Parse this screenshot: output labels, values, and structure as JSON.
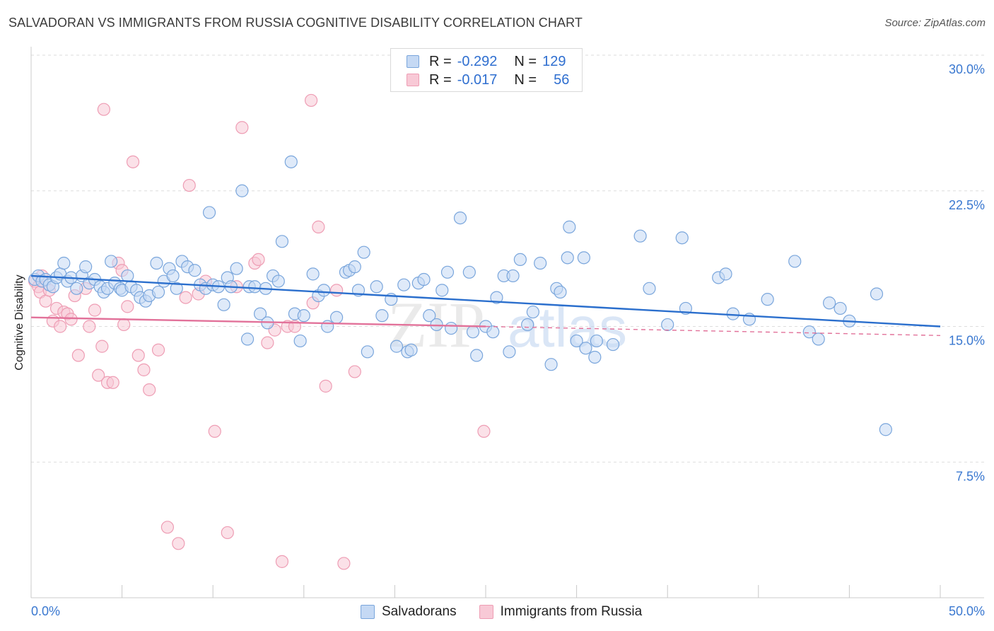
{
  "header": {
    "title": "SALVADORAN VS IMMIGRANTS FROM RUSSIA COGNITIVE DISABILITY CORRELATION CHART",
    "source": "Source: ZipAtlas.com"
  },
  "legend": {
    "rows": [
      {
        "r_label": "R =",
        "r_value": "-0.292",
        "n_label": "N =",
        "n_value": "129"
      },
      {
        "r_label": "R =",
        "r_value": "-0.017",
        "n_label": "N =",
        "n_value": "56"
      }
    ],
    "bottom": [
      "Salvadorans",
      "Immigrants from Russia"
    ]
  },
  "watermark": {
    "zip": "ZIP",
    "atlas": "atlas"
  },
  "colors": {
    "blue_fill": "#c5d9f4",
    "blue_stroke": "#7aa6dc",
    "blue_line": "#2b6fcd",
    "pink_fill": "#f8c9d6",
    "pink_stroke": "#ee9db4",
    "pink_line": "#e2729a",
    "tick_label": "#3a78d0",
    "grid": "#dddddd"
  },
  "chart_data": {
    "type": "scatter",
    "title": "SALVADORAN VS IMMIGRANTS FROM RUSSIA COGNITIVE DISABILITY CORRELATION CHART",
    "xlabel": "",
    "ylabel": "Cognitive Disability",
    "xlim": [
      0,
      50
    ],
    "ylim": [
      0,
      30
    ],
    "x_tick_labels": [
      "0.0%",
      "50.0%"
    ],
    "y_ticks": [
      {
        "value": 7.5,
        "label": "7.5%"
      },
      {
        "value": 15,
        "label": "15.0%"
      },
      {
        "value": 22.5,
        "label": "22.5%"
      },
      {
        "value": 30,
        "label": "30.0%"
      }
    ],
    "x_minor_ticks": [
      0,
      5,
      10,
      15,
      20,
      25,
      30,
      35,
      40,
      45,
      50
    ],
    "series": [
      {
        "name": "Salvadorans",
        "color": "blue",
        "r": -0.292,
        "n": 129,
        "trend": {
          "x0": 0,
          "y0": 17.8,
          "x1": 50,
          "y1": 15.0,
          "solid_to": 50
        },
        "points": [
          [
            0.2,
            17.6
          ],
          [
            0.4,
            17.8
          ],
          [
            0.6,
            17.5
          ],
          [
            0.8,
            17.6
          ],
          [
            1.0,
            17.3
          ],
          [
            1.2,
            17.2
          ],
          [
            1.4,
            17.7
          ],
          [
            1.6,
            17.9
          ],
          [
            1.8,
            18.5
          ],
          [
            2.0,
            17.5
          ],
          [
            2.2,
            17.7
          ],
          [
            2.5,
            17.1
          ],
          [
            2.8,
            17.8
          ],
          [
            3.0,
            18.3
          ],
          [
            3.2,
            17.4
          ],
          [
            3.5,
            17.6
          ],
          [
            3.8,
            17.2
          ],
          [
            4.0,
            16.9
          ],
          [
            4.2,
            17.1
          ],
          [
            4.4,
            18.6
          ],
          [
            4.6,
            17.4
          ],
          [
            4.9,
            17.1
          ],
          [
            5.0,
            17.0
          ],
          [
            5.3,
            17.8
          ],
          [
            5.5,
            17.2
          ],
          [
            5.8,
            17.0
          ],
          [
            6.0,
            16.6
          ],
          [
            6.3,
            16.4
          ],
          [
            6.5,
            16.7
          ],
          [
            6.9,
            18.5
          ],
          [
            7.0,
            16.9
          ],
          [
            7.3,
            17.5
          ],
          [
            7.6,
            18.2
          ],
          [
            7.8,
            17.8
          ],
          [
            8.0,
            17.1
          ],
          [
            8.3,
            18.6
          ],
          [
            8.6,
            18.3
          ],
          [
            9.0,
            18.1
          ],
          [
            9.3,
            17.3
          ],
          [
            9.6,
            17.1
          ],
          [
            9.8,
            21.3
          ],
          [
            10.0,
            17.3
          ],
          [
            10.3,
            17.2
          ],
          [
            10.6,
            16.2
          ],
          [
            10.8,
            17.7
          ],
          [
            11.0,
            17.2
          ],
          [
            11.3,
            18.2
          ],
          [
            11.6,
            22.5
          ],
          [
            11.9,
            14.3
          ],
          [
            12.0,
            17.2
          ],
          [
            12.3,
            17.2
          ],
          [
            12.6,
            15.7
          ],
          [
            12.9,
            17.1
          ],
          [
            13.0,
            15.2
          ],
          [
            13.3,
            17.8
          ],
          [
            13.6,
            17.5
          ],
          [
            13.8,
            19.7
          ],
          [
            14.3,
            24.1
          ],
          [
            14.5,
            15.7
          ],
          [
            14.8,
            14.2
          ],
          [
            15.0,
            15.6
          ],
          [
            15.5,
            17.9
          ],
          [
            15.8,
            16.7
          ],
          [
            16.1,
            17.0
          ],
          [
            16.3,
            15.0
          ],
          [
            16.8,
            15.5
          ],
          [
            17.3,
            18.0
          ],
          [
            17.5,
            18.1
          ],
          [
            17.8,
            18.3
          ],
          [
            18.0,
            17.0
          ],
          [
            18.3,
            19.1
          ],
          [
            18.5,
            13.6
          ],
          [
            19.0,
            17.2
          ],
          [
            19.3,
            15.6
          ],
          [
            19.8,
            16.5
          ],
          [
            20.1,
            13.9
          ],
          [
            20.5,
            17.3
          ],
          [
            20.7,
            13.6
          ],
          [
            20.9,
            13.7
          ],
          [
            21.3,
            17.4
          ],
          [
            21.6,
            17.6
          ],
          [
            21.9,
            15.6
          ],
          [
            22.3,
            15.1
          ],
          [
            22.6,
            17.0
          ],
          [
            22.9,
            18.0
          ],
          [
            23.1,
            14.9
          ],
          [
            23.6,
            21.0
          ],
          [
            24.1,
            18.0
          ],
          [
            24.3,
            14.7
          ],
          [
            24.5,
            13.4
          ],
          [
            25.0,
            15.0
          ],
          [
            25.4,
            14.7
          ],
          [
            25.6,
            16.6
          ],
          [
            26.0,
            17.8
          ],
          [
            26.3,
            13.6
          ],
          [
            26.5,
            17.8
          ],
          [
            26.9,
            18.7
          ],
          [
            27.3,
            15.1
          ],
          [
            27.6,
            15.8
          ],
          [
            28.0,
            18.5
          ],
          [
            28.6,
            12.9
          ],
          [
            28.9,
            17.1
          ],
          [
            29.1,
            16.9
          ],
          [
            29.5,
            18.8
          ],
          [
            29.6,
            20.5
          ],
          [
            30.0,
            14.2
          ],
          [
            30.4,
            18.8
          ],
          [
            30.5,
            13.8
          ],
          [
            31.0,
            13.3
          ],
          [
            31.1,
            14.2
          ],
          [
            32.0,
            14.0
          ],
          [
            33.5,
            20.0
          ],
          [
            34.0,
            17.1
          ],
          [
            35.0,
            15.1
          ],
          [
            35.8,
            19.9
          ],
          [
            37.8,
            17.7
          ],
          [
            38.2,
            17.9
          ],
          [
            40.5,
            16.5
          ],
          [
            42.0,
            18.6
          ],
          [
            42.8,
            14.7
          ],
          [
            43.3,
            14.3
          ],
          [
            43.9,
            16.3
          ],
          [
            44.5,
            16.0
          ],
          [
            45.0,
            15.3
          ],
          [
            46.5,
            16.8
          ],
          [
            47.0,
            9.3
          ],
          [
            36.0,
            16.0
          ],
          [
            38.6,
            15.7
          ],
          [
            39.5,
            15.4
          ]
        ]
      },
      {
        "name": "Immigrants from Russia",
        "color": "pink",
        "r": -0.017,
        "n": 56,
        "trend": {
          "x0": 0,
          "y0": 15.5,
          "x1": 50,
          "y1": 14.5,
          "solid_to": 25
        },
        "points": [
          [
            0.2,
            17.5
          ],
          [
            0.4,
            17.2
          ],
          [
            0.5,
            16.9
          ],
          [
            0.6,
            17.8
          ],
          [
            0.8,
            16.4
          ],
          [
            1.0,
            17.0
          ],
          [
            1.2,
            15.3
          ],
          [
            1.4,
            16.0
          ],
          [
            1.6,
            15.0
          ],
          [
            1.8,
            15.8
          ],
          [
            2.0,
            15.7
          ],
          [
            2.2,
            15.4
          ],
          [
            2.4,
            16.7
          ],
          [
            2.6,
            13.4
          ],
          [
            3.0,
            17.1
          ],
          [
            3.2,
            15.0
          ],
          [
            3.5,
            15.9
          ],
          [
            3.7,
            12.3
          ],
          [
            3.9,
            13.9
          ],
          [
            4.0,
            27.0
          ],
          [
            4.2,
            11.9
          ],
          [
            4.5,
            11.9
          ],
          [
            4.8,
            18.5
          ],
          [
            5.0,
            18.1
          ],
          [
            5.1,
            15.1
          ],
          [
            5.3,
            16.1
          ],
          [
            5.6,
            24.1
          ],
          [
            5.9,
            13.4
          ],
          [
            6.2,
            12.6
          ],
          [
            6.5,
            11.5
          ],
          [
            7.0,
            13.7
          ],
          [
            7.5,
            3.9
          ],
          [
            8.1,
            3.0
          ],
          [
            8.5,
            16.6
          ],
          [
            8.7,
            22.8
          ],
          [
            9.2,
            16.8
          ],
          [
            9.6,
            17.5
          ],
          [
            10.1,
            9.2
          ],
          [
            10.8,
            3.6
          ],
          [
            11.3,
            17.2
          ],
          [
            11.6,
            26.0
          ],
          [
            12.3,
            18.5
          ],
          [
            12.5,
            18.7
          ],
          [
            13.0,
            14.1
          ],
          [
            13.8,
            2.0
          ],
          [
            14.1,
            15.0
          ],
          [
            14.5,
            15.0
          ],
          [
            15.4,
            27.5
          ],
          [
            15.5,
            16.3
          ],
          [
            15.8,
            20.5
          ],
          [
            16.2,
            11.7
          ],
          [
            16.8,
            17.0
          ],
          [
            17.2,
            1.9
          ],
          [
            17.8,
            12.5
          ],
          [
            24.9,
            9.2
          ],
          [
            13.4,
            14.8
          ]
        ]
      }
    ]
  }
}
